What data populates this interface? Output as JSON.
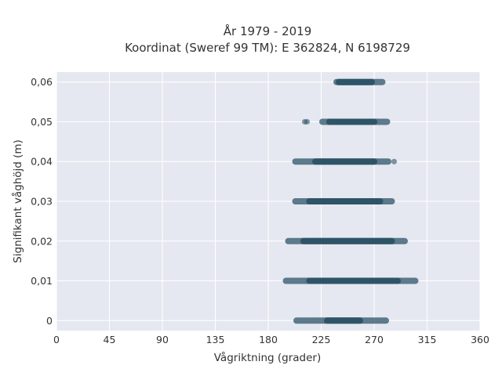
{
  "chart_data": {
    "type": "scatter",
    "title_line1": "År 1979 - 2019",
    "title_line2": "Koordinat (Sweref 99 TM): E 362824, N 6198729",
    "xlabel": "Vågriktning (grader)",
    "ylabel": "Signifikant våghöjd (m)",
    "xlim": [
      0,
      360
    ],
    "ylim": [
      -0.0025,
      0.0625
    ],
    "x_ticks": [
      0,
      45,
      90,
      135,
      180,
      225,
      270,
      315,
      360
    ],
    "x_tick_labels": [
      "0",
      "45",
      "90",
      "135",
      "180",
      "225",
      "270",
      "315",
      "360"
    ],
    "y_ticks": [
      0,
      0.01,
      0.02,
      0.03,
      0.04,
      0.05,
      0.06
    ],
    "y_tick_labels": [
      "0",
      "0,01",
      "0,02",
      "0,03",
      "0,04",
      "0,05",
      "0,06"
    ],
    "grid": true,
    "colors": {
      "background": "#e5e8f0",
      "grid": "#ffffff",
      "marker": "#2e5468"
    },
    "bands": [
      {
        "y": 0.0,
        "x_min": 204,
        "x_max": 280,
        "dense_from": 230,
        "dense_to": 258
      },
      {
        "y": 0.01,
        "x_min": 195,
        "x_max": 305,
        "dense_from": 215,
        "dense_to": 290
      },
      {
        "y": 0.02,
        "x_min": 197,
        "x_max": 296,
        "dense_from": 210,
        "dense_to": 285
      },
      {
        "y": 0.03,
        "x_min": 203,
        "x_max": 285,
        "dense_from": 215,
        "dense_to": 275
      },
      {
        "y": 0.04,
        "x_min": 203,
        "x_max": 282,
        "dense_from": 220,
        "dense_to": 270
      },
      {
        "y": 0.05,
        "x_min": 226,
        "x_max": 281,
        "dense_from": 232,
        "dense_to": 270
      },
      {
        "y": 0.06,
        "x_min": 238,
        "x_max": 277,
        "dense_from": 240,
        "dense_to": 268
      }
    ],
    "outliers": [
      {
        "x": 287,
        "y": 0.04
      },
      {
        "x": 211,
        "y": 0.05
      },
      {
        "x": 213,
        "y": 0.05
      }
    ]
  }
}
